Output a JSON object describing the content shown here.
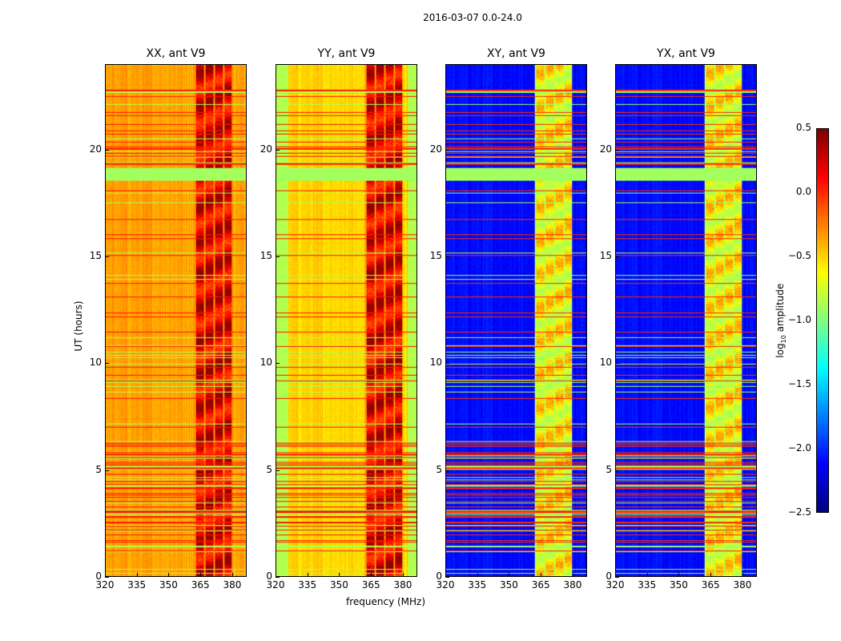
{
  "chart_data": {
    "type": "heatmap",
    "title": "2016-03-07 0.0-24.0",
    "xlabel": "frequency (MHz)",
    "ylabel": "UT (hours)",
    "xlim": [
      320,
      386.8
    ],
    "ylim": [
      0,
      24
    ],
    "x_ticks": [
      "320",
      "335",
      "350",
      "365",
      "380"
    ],
    "y_ticks": [
      "0",
      "5",
      "10",
      "15",
      "20"
    ],
    "panels": [
      {
        "title": "XX, ant V9",
        "baseline_log10_amp": -0.35,
        "rfi_band_MHz": [
          362,
          380
        ],
        "rfi_log10_amp": 0.2
      },
      {
        "title": "YY, ant V9",
        "baseline_log10_amp": -0.5,
        "rfi_band_MHz": [
          362,
          380
        ],
        "rfi_log10_amp": 0.2
      },
      {
        "title": "XY, ant V9",
        "baseline_log10_amp": -2.1,
        "rfi_band_MHz": [
          362,
          380
        ],
        "rfi_log10_amp": -0.6
      },
      {
        "title": "YX, ant V9",
        "baseline_log10_amp": -2.1,
        "rfi_band_MHz": [
          362,
          380
        ],
        "rfi_log10_amp": -0.6
      }
    ],
    "flagged_hours": [
      [
        18.6,
        19.2
      ]
    ],
    "colorbar": {
      "label": "log10 amplitude",
      "label_main": "log",
      "label_sub": "10",
      "label_rest": " amplitude",
      "colormap": "jet",
      "range": [
        -2.5,
        0.5
      ],
      "ticks": [
        "0.5",
        "0.0",
        "−0.5",
        "−1.0",
        "−1.5",
        "−2.0",
        "−2.5"
      ]
    }
  }
}
